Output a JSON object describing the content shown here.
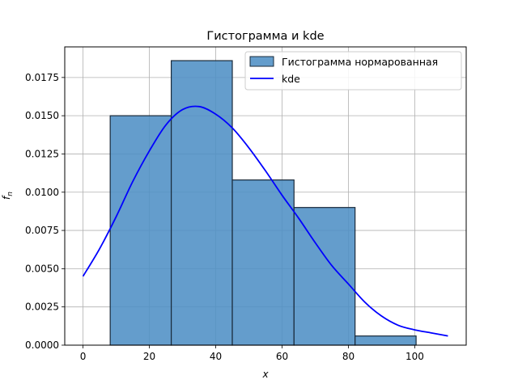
{
  "chart_data": {
    "type": "bar",
    "title": "Гистограмма и kde",
    "xlabel": "x",
    "ylabel": "f_n",
    "xlim": [
      -5.5,
      115.5
    ],
    "ylim": [
      0,
      0.0195
    ],
    "grid": true,
    "legend_position": "top-right",
    "x_ticks": [
      0,
      20,
      40,
      60,
      80,
      100
    ],
    "x_tick_labels": [
      "0",
      "20",
      "40",
      "60",
      "80",
      "100"
    ],
    "y_ticks": [
      0,
      0.0025,
      0.005,
      0.0075,
      0.01,
      0.0125,
      0.015,
      0.0175
    ],
    "y_tick_labels": [
      "0.0000",
      "0.0025",
      "0.0050",
      "0.0075",
      "0.0100",
      "0.0125",
      "0.0150",
      "0.0175"
    ],
    "histogram": {
      "name": "Гистограмма нормарованная",
      "color": "#4f8fc5",
      "edge_color": "#1a2a3a",
      "bins": [
        {
          "x0": 8.2,
          "x1": 26.6,
          "value": 0.015
        },
        {
          "x0": 26.6,
          "x1": 45.0,
          "value": 0.0186
        },
        {
          "x0": 45.0,
          "x1": 63.6,
          "value": 0.0108
        },
        {
          "x0": 63.6,
          "x1": 82.0,
          "value": 0.009
        },
        {
          "x0": 82.0,
          "x1": 100.4,
          "value": 0.0006
        }
      ]
    },
    "kde": {
      "name": "kde",
      "color": "#0000ff",
      "x": [
        0,
        5,
        10,
        15,
        20,
        25,
        30,
        35,
        40,
        45,
        50,
        55,
        60,
        65,
        70,
        75,
        80,
        85,
        90,
        95,
        100,
        105,
        110
      ],
      "y": [
        0.0045,
        0.0063,
        0.0084,
        0.0107,
        0.0127,
        0.0144,
        0.0154,
        0.0156,
        0.0151,
        0.0142,
        0.0129,
        0.0114,
        0.0098,
        0.0083,
        0.0067,
        0.0052,
        0.004,
        0.0028,
        0.0019,
        0.0013,
        0.001,
        0.0008,
        0.0006
      ]
    }
  }
}
